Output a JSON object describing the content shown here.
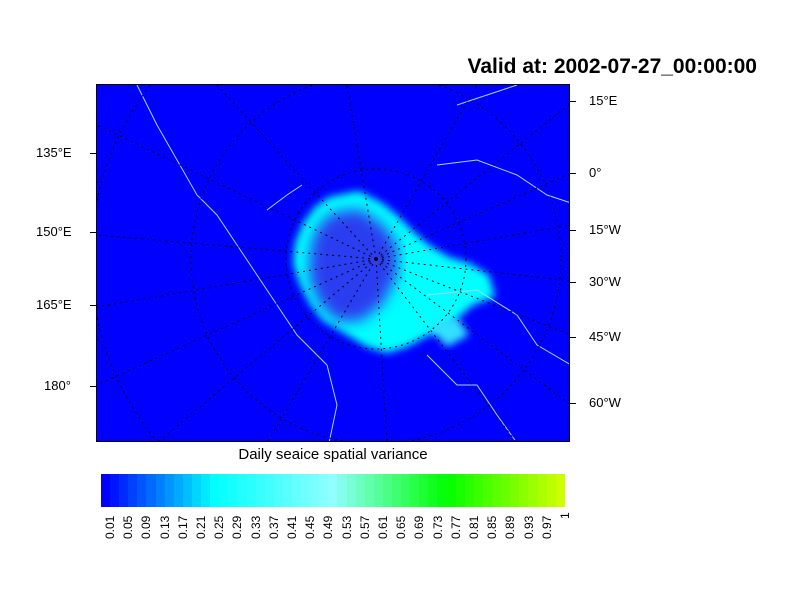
{
  "title": "Valid at: 2002-07-27_00:00:00",
  "left_lon_labels": [
    "135°E",
    "150°E",
    "165°E",
    "180°"
  ],
  "right_lon_labels": [
    "15°E",
    "0°",
    "15°W",
    "30°W",
    "45°W",
    "60°W"
  ],
  "colorbar": {
    "title": "Daily seaice spatial variance",
    "labels": [
      "0.01",
      "0.05",
      "0.09",
      "0.13",
      "0.17",
      "0.21",
      "0.25",
      "0.29",
      "0.33",
      "0.37",
      "0.41",
      "0.45",
      "0.49",
      "0.53",
      "0.57",
      "0.61",
      "0.65",
      "0.69",
      "0.73",
      "0.77",
      "0.81",
      "0.85",
      "0.89",
      "0.93",
      "0.97",
      "1"
    ],
    "color_stops": [
      "#0000ff",
      "#00ffff",
      "#90ffff",
      "#00ff00",
      "#ccff00"
    ]
  },
  "colors": {
    "background_field": "#0000ff",
    "ice_edge": "#00ffff",
    "coastline": "#a0d8ff"
  }
}
